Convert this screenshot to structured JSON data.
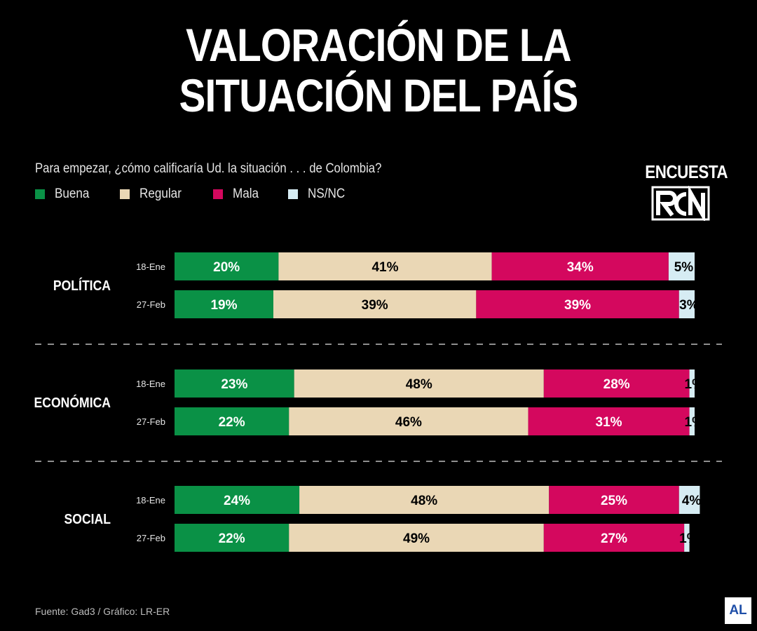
{
  "title_line1": "VALORACIÓN DE LA",
  "title_line2": "SITUACIÓN DEL PAÍS",
  "subtitle": "Para empezar, ¿cómo calificaría Ud. la situación . . . de Colombia?",
  "brand": {
    "word": "ENCUESTA",
    "logo_text": "RCN",
    "logo_icon": "rcn-logo-icon"
  },
  "footer": {
    "source": "Fuente: Gad3 / Gráfico: LR-ER",
    "corner_logo": "AL"
  },
  "colors": {
    "buena": "#0a9146",
    "regular": "#ead7b5",
    "mala": "#d4085e",
    "nsnc": "#d6ecf3",
    "background": "#000000"
  },
  "chart_data": {
    "type": "bar",
    "orientation": "horizontal-stacked",
    "title": "VALORACIÓN DE LA SITUACIÓN DEL PAÍS",
    "legend": [
      "Buena",
      "Regular",
      "Mala",
      "NS/NC"
    ],
    "xlim": [
      0,
      100
    ],
    "groups": [
      {
        "category": "POLÍTICA",
        "rows": [
          {
            "date": "18-Ene",
            "values": [
              20,
              41,
              34,
              5
            ],
            "labels": [
              "20%",
              "41%",
              "34%",
              "5%"
            ]
          },
          {
            "date": "27-Feb",
            "values": [
              19,
              39,
              39,
              3
            ],
            "labels": [
              "19%",
              "39%",
              "39%",
              "3%"
            ]
          }
        ]
      },
      {
        "category": "ECONÓMICA",
        "rows": [
          {
            "date": "18-Ene",
            "values": [
              23,
              48,
              28,
              1
            ],
            "labels": [
              "23%",
              "48%",
              "28%",
              "1%"
            ]
          },
          {
            "date": "27-Feb",
            "values": [
              22,
              46,
              31,
              1
            ],
            "labels": [
              "22%",
              "46%",
              "31%",
              "1%"
            ]
          }
        ]
      },
      {
        "category": "SOCIAL",
        "rows": [
          {
            "date": "18-Ene",
            "values": [
              24,
              48,
              25,
              4
            ],
            "labels": [
              "24%",
              "48%",
              "25%",
              "4%"
            ]
          },
          {
            "date": "27-Feb",
            "values": [
              22,
              49,
              27,
              1
            ],
            "labels": [
              "22%",
              "49%",
              "27%",
              "1%"
            ]
          }
        ]
      }
    ]
  }
}
